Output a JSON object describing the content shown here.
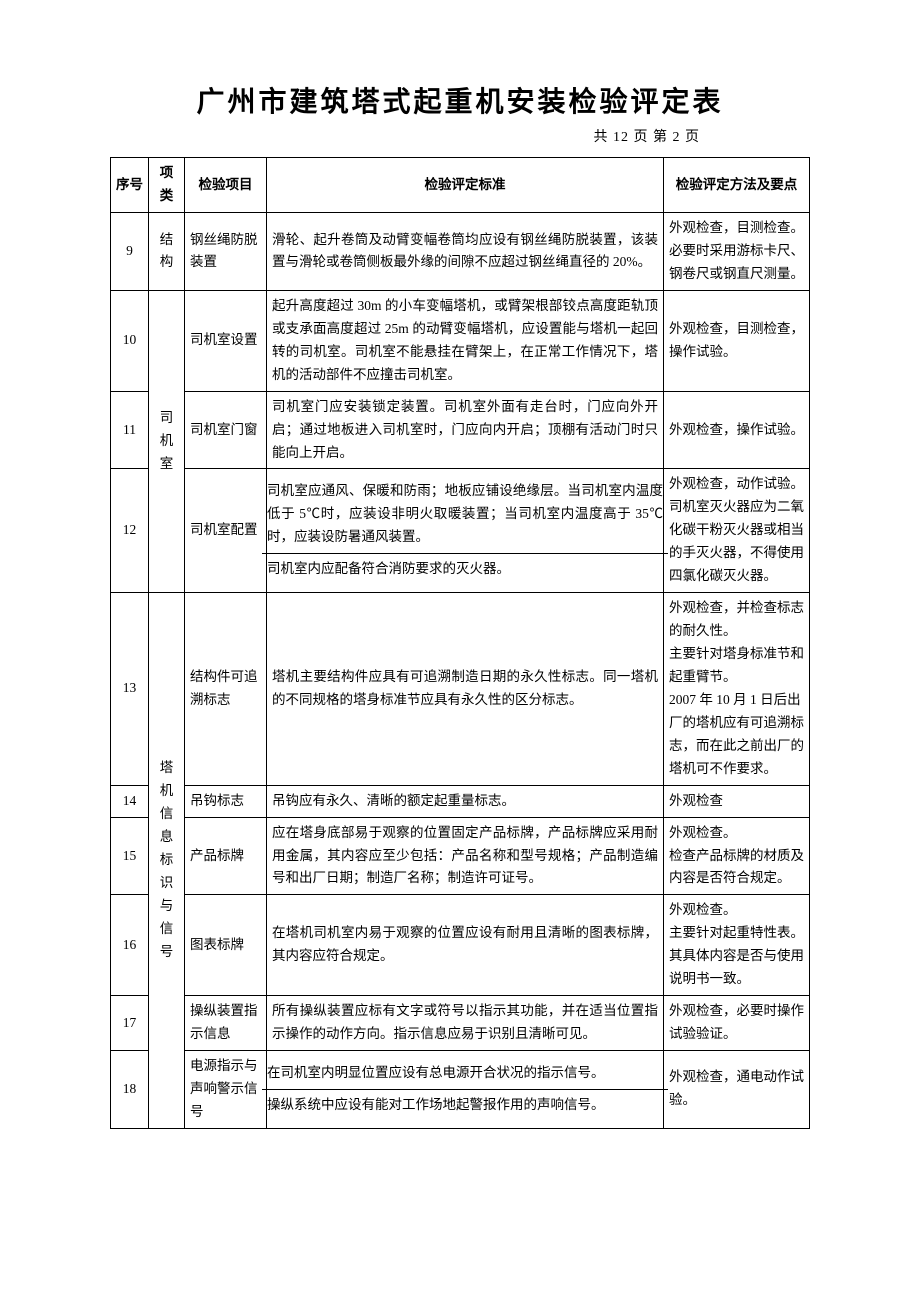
{
  "title": "广州市建筑塔式起重机安装检验评定表",
  "pager": "共 12 页 第 2 页",
  "headers": {
    "idx": "序号",
    "cat": "项类",
    "item": "检验项目",
    "std": "检验评定标准",
    "mtd": "检验评定方法及要点"
  },
  "rows": {
    "r9": {
      "idx": "9",
      "cat": "结构",
      "item": "钢丝绳防脱装置",
      "std": "滑轮、起升卷筒及动臂变幅卷筒均应设有钢丝绳防脱装置，该装置与滑轮或卷筒侧板最外缘的间隙不应超过钢丝绳直径的 20%。",
      "mtd": "外观检查，目测检查。必要时采用游标卡尺、钢卷尺或钢直尺测量。"
    },
    "r10": {
      "idx": "10",
      "item": "司机室设置",
      "std": "起升高度超过 30m 的小车变幅塔机，或臂架根部铰点高度距轨顶或支承面高度超过 25m 的动臂变幅塔机，应设置能与塔机一起回转的司机室。司机室不能悬挂在臂架上，在正常工作情况下，塔机的活动部件不应撞击司机室。",
      "mtd": "外观检查，目测检查，操作试验。"
    },
    "r11": {
      "idx": "11",
      "cat": "司机室",
      "item": "司机室门窗",
      "std": "司机室门应安装锁定装置。司机室外面有走台时，门应向外开启；通过地板进入司机室时，门应向内开启；顶棚有活动门时只能向上开启。",
      "mtd": "外观检查，操作试验。"
    },
    "r12": {
      "idx": "12",
      "item": "司机室配置",
      "std_a": "司机室应通风、保暖和防雨；地板应铺设绝缘层。当司机室内温度低于 5℃时，应装设非明火取暖装置；当司机室内温度高于 35℃时，应装设防暑通风装置。",
      "std_b": "司机室内应配备符合消防要求的灭火器。",
      "mtd": "外观检查，动作试验。司机室灭火器应为二氧化碳干粉灭火器或相当的手灭火器，不得使用四氯化碳灭火器。"
    },
    "r13": {
      "idx": "13",
      "item": "结构件可追溯标志",
      "std": "塔机主要结构件应具有可追溯制造日期的永久性标志。同一塔机的不同规格的塔身标准节应具有永久性的区分标志。",
      "mtd": "外观检查，并检查标志的耐久性。\n主要针对塔身标准节和起重臂节。\n2007 年 10 月 1 日后出厂的塔机应有可追溯标志，而在此之前出厂的塔机可不作要求。"
    },
    "r14": {
      "idx": "14",
      "item": "吊钩标志",
      "std": "吊钩应有永久、清晰的额定起重量标志。",
      "mtd": "外观检查"
    },
    "r15": {
      "idx": "15",
      "cat": "塔机信息标识与信号",
      "item": "产品标牌",
      "std": "应在塔身底部易于观察的位置固定产品标牌，产品标牌应采用耐用金属，其内容应至少包括：产品名称和型号规格；产品制造编号和出厂日期；制造厂名称；制造许可证号。",
      "mtd": "外观检查。\n检查产品标牌的材质及内容是否符合规定。"
    },
    "r16": {
      "idx": "16",
      "item": "图表标牌",
      "std": "在塔机司机室内易于观察的位置应设有耐用且清晰的图表标牌，其内容应符合规定。",
      "mtd": "外观检查。\n主要针对起重特性表。其具体内容是否与使用说明书一致。"
    },
    "r17": {
      "idx": "17",
      "item": "操纵装置指示信息",
      "std": "所有操纵装置应标有文字或符号以指示其功能，并在适当位置指示操作的动作方向。指示信息应易于识别且清晰可见。",
      "mtd": "外观检查，必要时操作试验验证。"
    },
    "r18": {
      "idx": "18",
      "item": "电源指示与声响警示信号",
      "std_a": "在司机室内明显位置应设有总电源开合状况的指示信号。",
      "std_b": "操纵系统中应设有能对工作场地起警报作用的声响信号。",
      "mtd": "外观检查，通电动作试验。"
    }
  }
}
